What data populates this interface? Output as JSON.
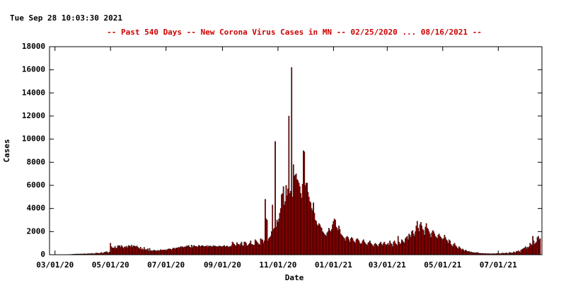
{
  "chart_data": {
    "type": "bar",
    "title": "--  Past 540 Days  --  New Corona Virus Cases in MN  -- 02/25/2020 ... 08/16/2021  --",
    "subtitle": "Tue Sep 28 10:03:30 2021",
    "x_label": "Date",
    "y_label": "Cases",
    "color": "#b40000",
    "edge_color": "#000000",
    "grid": false,
    "xlim": [
      "02/24/20",
      "08/18/21"
    ],
    "xticks": [
      "03/01/20",
      "05/01/20",
      "07/01/20",
      "09/01/20",
      "11/01/20",
      "01/01/21",
      "03/01/21",
      "05/01/21",
      "07/01/21"
    ],
    "ylim": [
      0,
      18000
    ],
    "yticks": [
      0,
      2000,
      4000,
      6000,
      8000,
      10000,
      12000,
      14000,
      16000,
      18000
    ],
    "x": [
      "02/25/20",
      "02/26/20",
      "02/27/20",
      "02/28/20",
      "02/29/20",
      "03/01/20",
      "03/02/20",
      "03/03/20",
      "03/04/20",
      "03/05/20",
      "03/06/20",
      "03/07/20",
      "03/08/20",
      "03/09/20",
      "03/10/20",
      "03/11/20",
      "03/12/20",
      "03/13/20",
      "03/14/20",
      "03/15/20",
      "03/16/20",
      "03/17/20",
      "03/18/20",
      "03/19/20",
      "03/20/20",
      "03/21/20",
      "03/22/20",
      "03/23/20",
      "03/24/20",
      "03/25/20",
      "03/26/20",
      "03/27/20",
      "03/28/20",
      "03/29/20",
      "03/30/20",
      "03/31/20",
      "04/01/20",
      "04/02/20",
      "04/03/20",
      "04/04/20",
      "04/05/20",
      "04/06/20",
      "04/07/20",
      "04/08/20",
      "04/09/20",
      "04/10/20",
      "04/11/20",
      "04/12/20",
      "04/13/20",
      "04/14/20",
      "04/15/20",
      "04/16/20",
      "04/17/20",
      "04/18/20",
      "04/19/20",
      "04/20/20",
      "04/21/20",
      "04/22/20",
      "04/23/20",
      "04/24/20",
      "04/25/20",
      "04/26/20",
      "04/27/20",
      "04/28/20",
      "04/29/20",
      "04/30/20",
      "05/01/20",
      "05/02/20",
      "05/03/20",
      "05/04/20",
      "05/05/20",
      "05/06/20",
      "05/07/20",
      "05/08/20",
      "05/09/20",
      "05/10/20",
      "05/11/20",
      "05/12/20",
      "05/13/20",
      "05/14/20",
      "05/15/20",
      "05/16/20",
      "05/17/20",
      "05/18/20",
      "05/19/20",
      "05/20/20",
      "05/21/20",
      "05/22/20",
      "05/23/20",
      "05/24/20",
      "05/25/20",
      "05/26/20",
      "05/27/20",
      "05/28/20",
      "05/29/20",
      "05/30/20",
      "05/31/20",
      "06/01/20",
      "06/02/20",
      "06/03/20",
      "06/04/20",
      "06/05/20",
      "06/06/20",
      "06/07/20",
      "06/08/20",
      "06/09/20",
      "06/10/20",
      "06/11/20",
      "06/12/20",
      "06/13/20",
      "06/14/20",
      "06/15/20",
      "06/16/20",
      "06/17/20",
      "06/18/20",
      "06/19/20",
      "06/20/20",
      "06/21/20",
      "06/22/20",
      "06/23/20",
      "06/24/20",
      "06/25/20",
      "06/26/20",
      "06/27/20",
      "06/28/20",
      "06/29/20",
      "06/30/20",
      "07/01/20",
      "07/02/20",
      "07/03/20",
      "07/04/20",
      "07/05/20",
      "07/06/20",
      "07/07/20",
      "07/08/20",
      "07/09/20",
      "07/10/20",
      "07/11/20",
      "07/12/20",
      "07/13/20",
      "07/14/20",
      "07/15/20",
      "07/16/20",
      "07/17/20",
      "07/18/20",
      "07/19/20",
      "07/20/20",
      "07/21/20",
      "07/22/20",
      "07/23/20",
      "07/24/20",
      "07/25/20",
      "07/26/20",
      "07/27/20",
      "07/28/20",
      "07/29/20",
      "07/30/20",
      "07/31/20",
      "08/01/20",
      "08/02/20",
      "08/03/20",
      "08/04/20",
      "08/05/20",
      "08/06/20",
      "08/07/20",
      "08/08/20",
      "08/09/20",
      "08/10/20",
      "08/11/20",
      "08/12/20",
      "08/13/20",
      "08/14/20",
      "08/15/20",
      "08/16/20",
      "08/17/20",
      "08/18/20",
      "08/19/20",
      "08/20/20",
      "08/21/20",
      "08/22/20",
      "08/23/20",
      "08/24/20",
      "08/25/20",
      "08/26/20",
      "08/27/20",
      "08/28/20",
      "08/29/20",
      "08/30/20",
      "08/31/20",
      "09/01/20",
      "09/02/20",
      "09/03/20",
      "09/04/20",
      "09/05/20",
      "09/06/20",
      "09/07/20",
      "09/08/20",
      "09/09/20",
      "09/10/20",
      "09/11/20",
      "09/12/20",
      "09/13/20",
      "09/14/20",
      "09/15/20",
      "09/16/20",
      "09/17/20",
      "09/18/20",
      "09/19/20",
      "09/20/20",
      "09/21/20",
      "09/22/20",
      "09/23/20",
      "09/24/20",
      "09/25/20",
      "09/26/20",
      "09/27/20",
      "09/28/20",
      "09/29/20",
      "09/30/20",
      "10/01/20",
      "10/02/20",
      "10/03/20",
      "10/04/20",
      "10/05/20",
      "10/06/20",
      "10/07/20",
      "10/08/20",
      "10/09/20",
      "10/10/20",
      "10/11/20",
      "10/12/20",
      "10/13/20",
      "10/14/20",
      "10/15/20",
      "10/16/20",
      "10/17/20",
      "10/18/20",
      "10/19/20",
      "10/20/20",
      "10/21/20",
      "10/22/20",
      "10/23/20",
      "10/24/20",
      "10/25/20",
      "10/26/20",
      "10/27/20",
      "10/28/20",
      "10/29/20",
      "10/30/20",
      "10/31/20",
      "11/01/20",
      "11/02/20",
      "11/03/20",
      "11/04/20",
      "11/05/20",
      "11/06/20",
      "11/07/20",
      "11/08/20",
      "11/09/20",
      "11/10/20",
      "11/11/20",
      "11/12/20",
      "11/13/20",
      "11/14/20",
      "11/15/20",
      "11/16/20",
      "11/17/20",
      "11/18/20",
      "11/19/20",
      "11/20/20",
      "11/21/20",
      "11/22/20",
      "11/23/20",
      "11/24/20",
      "11/25/20",
      "11/26/20",
      "11/27/20",
      "11/28/20",
      "11/29/20",
      "11/30/20",
      "12/01/20",
      "12/02/20",
      "12/03/20",
      "12/04/20",
      "12/05/20",
      "12/06/20",
      "12/07/20",
      "12/08/20",
      "12/09/20",
      "12/10/20",
      "12/11/20",
      "12/12/20",
      "12/13/20",
      "12/14/20",
      "12/15/20",
      "12/16/20",
      "12/17/20",
      "12/18/20",
      "12/19/20",
      "12/20/20",
      "12/21/20",
      "12/22/20",
      "12/23/20",
      "12/24/20",
      "12/25/20",
      "12/26/20",
      "12/27/20",
      "12/28/20",
      "12/29/20",
      "12/30/20",
      "12/31/20",
      "01/01/21",
      "01/02/21",
      "01/03/21",
      "01/04/21",
      "01/05/21",
      "01/06/21",
      "01/07/21",
      "01/08/21",
      "01/09/21",
      "01/10/21",
      "01/11/21",
      "01/12/21",
      "01/13/21",
      "01/14/21",
      "01/15/21",
      "01/16/21",
      "01/17/21",
      "01/18/21",
      "01/19/21",
      "01/20/21",
      "01/21/21",
      "01/22/21",
      "01/23/21",
      "01/24/21",
      "01/25/21",
      "01/26/21",
      "01/27/21",
      "01/28/21",
      "01/29/21",
      "01/30/21",
      "01/31/21",
      "02/01/21",
      "02/02/21",
      "02/03/21",
      "02/04/21",
      "02/05/21",
      "02/06/21",
      "02/07/21",
      "02/08/21",
      "02/09/21",
      "02/10/21",
      "02/11/21",
      "02/12/21",
      "02/13/21",
      "02/14/21",
      "02/15/21",
      "02/16/21",
      "02/17/21",
      "02/18/21",
      "02/19/21",
      "02/20/21",
      "02/21/21",
      "02/22/21",
      "02/23/21",
      "02/24/21",
      "02/25/21",
      "02/26/21",
      "02/27/21",
      "02/28/21",
      "03/01/21",
      "03/02/21",
      "03/03/21",
      "03/04/21",
      "03/05/21",
      "03/06/21",
      "03/07/21",
      "03/08/21",
      "03/09/21",
      "03/10/21",
      "03/11/21",
      "03/12/21",
      "03/13/21",
      "03/14/21",
      "03/15/21",
      "03/16/21",
      "03/17/21",
      "03/18/21",
      "03/19/21",
      "03/20/21",
      "03/21/21",
      "03/22/21",
      "03/23/21",
      "03/24/21",
      "03/25/21",
      "03/26/21",
      "03/27/21",
      "03/28/21",
      "03/29/21",
      "03/30/21",
      "03/31/21",
      "04/01/21",
      "04/02/21",
      "04/03/21",
      "04/04/21",
      "04/05/21",
      "04/06/21",
      "04/07/21",
      "04/08/21",
      "04/09/21",
      "04/10/21",
      "04/11/21",
      "04/12/21",
      "04/13/21",
      "04/14/21",
      "04/15/21",
      "04/16/21",
      "04/17/21",
      "04/18/21",
      "04/19/21",
      "04/20/21",
      "04/21/21",
      "04/22/21",
      "04/23/21",
      "04/24/21",
      "04/25/21",
      "04/26/21",
      "04/27/21",
      "04/28/21",
      "04/29/21",
      "04/30/21",
      "05/01/21",
      "05/02/21",
      "05/03/21",
      "05/04/21",
      "05/05/21",
      "05/06/21",
      "05/07/21",
      "05/08/21",
      "05/09/21",
      "05/10/21",
      "05/11/21",
      "05/12/21",
      "05/13/21",
      "05/14/21",
      "05/15/21",
      "05/16/21",
      "05/17/21",
      "05/18/21",
      "05/19/21",
      "05/20/21",
      "05/21/21",
      "05/22/21",
      "05/23/21",
      "05/24/21",
      "05/25/21",
      "05/26/21",
      "05/27/21",
      "05/28/21",
      "05/29/21",
      "05/30/21",
      "05/31/21",
      "06/01/21",
      "06/02/21",
      "06/03/21",
      "06/04/21",
      "06/05/21",
      "06/06/21",
      "06/07/21",
      "06/08/21",
      "06/09/21",
      "06/10/21",
      "06/11/21",
      "06/12/21",
      "06/13/21",
      "06/14/21",
      "06/15/21",
      "06/16/21",
      "06/17/21",
      "06/18/21",
      "06/19/21",
      "06/20/21",
      "06/21/21",
      "06/22/21",
      "06/23/21",
      "06/24/21",
      "06/25/21",
      "06/26/21",
      "06/27/21",
      "06/28/21",
      "06/29/21",
      "06/30/21",
      "07/01/21",
      "07/02/21",
      "07/03/21",
      "07/04/21",
      "07/05/21",
      "07/06/21",
      "07/07/21",
      "07/08/21",
      "07/09/21",
      "07/10/21",
      "07/11/21",
      "07/12/21",
      "07/13/21",
      "07/14/21",
      "07/15/21",
      "07/16/21",
      "07/17/21",
      "07/18/21",
      "07/19/21",
      "07/20/21",
      "07/21/21",
      "07/22/21",
      "07/23/21",
      "07/24/21",
      "07/25/21",
      "07/26/21",
      "07/27/21",
      "07/28/21",
      "07/29/21",
      "07/30/21",
      "07/31/21",
      "08/01/21",
      "08/02/21",
      "08/03/21",
      "08/04/21",
      "08/05/21",
      "08/06/21",
      "08/07/21",
      "08/08/21",
      "08/09/21",
      "08/10/21",
      "08/11/21",
      "08/12/21",
      "08/13/21",
      "08/14/21",
      "08/15/21",
      "08/16/21"
    ],
    "values": [
      0,
      0,
      0,
      0,
      0,
      0,
      0,
      0,
      0,
      0,
      1,
      2,
      3,
      5,
      3,
      6,
      5,
      14,
      14,
      19,
      12,
      20,
      29,
      16,
      40,
      36,
      47,
      52,
      56,
      65,
      51,
      60,
      59,
      67,
      53,
      70,
      60,
      80,
      84,
      62,
      58,
      92,
      82,
      90,
      70,
      117,
      100,
      80,
      90,
      90,
      150,
      130,
      140,
      100,
      120,
      130,
      200,
      140,
      120,
      200,
      220,
      250,
      260,
      180,
      170,
      230,
      1000,
      700,
      600,
      580,
      580,
      730,
      560,
      560,
      780,
      780,
      780,
      640,
      800,
      700,
      540,
      640,
      700,
      620,
      740,
      610,
      800,
      750,
      700,
      830,
      640,
      780,
      770,
      710,
      700,
      760,
      650,
      560,
      520,
      660,
      440,
      520,
      420,
      640,
      400,
      480,
      390,
      520,
      320,
      550,
      320,
      360,
      330,
      370,
      400,
      350,
      360,
      300,
      380,
      340,
      360,
      440,
      360,
      420,
      400,
      420,
      380,
      440,
      370,
      480,
      510,
      500,
      490,
      400,
      500,
      580,
      550,
      500,
      600,
      560,
      600,
      650,
      600,
      700,
      680,
      700,
      620,
      650,
      700,
      680,
      780,
      740,
      800,
      660,
      600,
      840,
      620,
      760,
      800,
      720,
      720,
      700,
      660,
      820,
      760,
      700,
      770,
      780,
      750,
      700,
      730,
      720,
      800,
      650,
      760,
      740,
      760,
      700,
      680,
      800,
      720,
      760,
      700,
      720,
      660,
      750,
      760,
      720,
      700,
      700,
      750,
      800,
      680,
      720,
      760,
      700,
      640,
      720,
      680,
      800,
      1100,
      1000,
      900,
      800,
      780,
      1050,
      900,
      900,
      800,
      950,
      1100,
      800,
      750,
      1100,
      1100,
      1000,
      780,
      800,
      900,
      1000,
      1200,
      900,
      880,
      800,
      850,
      1300,
      1200,
      1100,
      1000,
      900,
      850,
      1400,
      1300,
      1300,
      1000,
      1200,
      4800,
      3100,
      3000,
      1200,
      1400,
      1500,
      1600,
      2000,
      4300,
      2200,
      2300,
      9800,
      2400,
      3000,
      2800,
      3100,
      3600,
      4000,
      5200,
      5300,
      5900,
      4300,
      4600,
      6000,
      5100,
      5700,
      12000,
      5300,
      5500,
      16200,
      5000,
      7800,
      6800,
      6900,
      7000,
      6500,
      6400,
      6200,
      5900,
      5300,
      4900,
      6100,
      9000,
      8900,
      6000,
      6200,
      6200,
      5400,
      5000,
      4600,
      4500,
      4000,
      3800,
      4500,
      3600,
      3000,
      2900,
      2600,
      2500,
      2700,
      2600,
      2400,
      2300,
      2000,
      1900,
      1800,
      1700,
      1600,
      1900,
      2000,
      2300,
      2100,
      2000,
      2200,
      2600,
      2900,
      3100,
      3000,
      2400,
      2300,
      2100,
      2500,
      2200,
      1800,
      1700,
      1600,
      1500,
      1400,
      1200,
      1500,
      1600,
      1500,
      1300,
      1100,
      1400,
      1500,
      1400,
      1200,
      1100,
      1000,
      1300,
      1400,
      1300,
      1200,
      1000,
      900,
      1000,
      1200,
      1300,
      1100,
      1000,
      900,
      800,
      1000,
      1100,
      1200,
      1000,
      900,
      800,
      700,
      900,
      1000,
      900,
      800,
      700,
      900,
      1000,
      1100,
      900,
      800,
      1000,
      1100,
      900,
      800,
      900,
      1000,
      800,
      1200,
      1000,
      900,
      700,
      1100,
      1200,
      1000,
      900,
      800,
      1600,
      1100,
      900,
      1000,
      1300,
      1200,
      1100,
      1000,
      1400,
      1500,
      1600,
      1300,
      1800,
      1700,
      1500,
      2000,
      2100,
      1800,
      1600,
      2000,
      2500,
      2900,
      2300,
      2000,
      2600,
      2800,
      2500,
      2200,
      2100,
      1700,
      2400,
      2700,
      2300,
      2200,
      2000,
      1800,
      1500,
      1900,
      2100,
      2000,
      1800,
      1600,
      1500,
      1400,
      1700,
      1800,
      1600,
      1500,
      1400,
      1300,
      1400,
      1700,
      1500,
      1300,
      1200,
      1000,
      1300,
      1200,
      900,
      800,
      700,
      900,
      1000,
      800,
      700,
      600,
      500,
      700,
      600,
      500,
      400,
      500,
      400,
      300,
      400,
      350,
      300,
      250,
      300,
      200,
      250,
      200,
      180,
      200,
      150,
      160,
      180,
      200,
      150,
      120,
      130,
      110,
      100,
      120,
      90,
      100,
      110,
      80,
      90,
      100,
      80,
      90,
      70,
      80,
      100,
      70,
      90,
      80,
      100,
      110,
      120,
      100,
      90,
      80,
      130,
      150,
      110,
      120,
      140,
      160,
      100,
      90,
      200,
      180,
      150,
      170,
      130,
      250,
      200,
      180,
      300,
      250,
      350,
      280,
      200,
      400,
      450,
      500,
      550,
      600,
      700,
      500,
      650,
      600,
      700,
      1000,
      900,
      800,
      1600,
      1200,
      900,
      1000,
      1100,
      1500,
      1600,
      1300,
      1400
    ]
  }
}
